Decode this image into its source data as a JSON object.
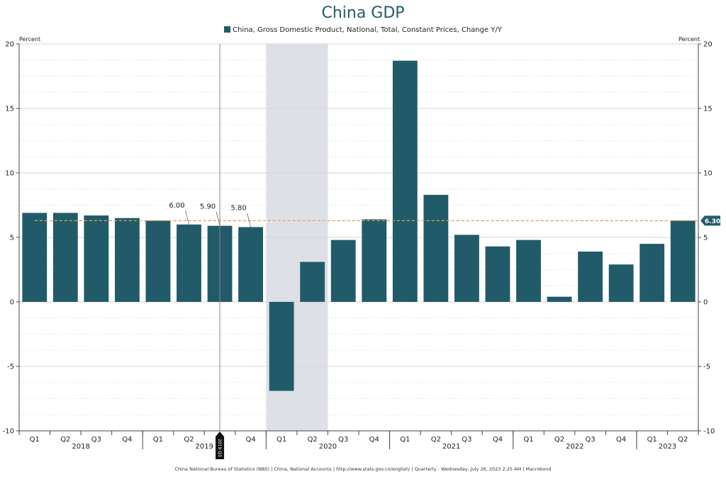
{
  "chart_data": {
    "type": "bar",
    "title": "China GDP",
    "series": [
      {
        "name": "China, Gross Domestic Product, National, Total, Constant Prices, Change Y/Y",
        "color": "#215B69",
        "values": [
          6.9,
          6.9,
          6.7,
          6.5,
          6.3,
          6.0,
          5.9,
          5.8,
          -6.9,
          3.1,
          4.8,
          6.4,
          18.7,
          8.3,
          5.2,
          4.3,
          4.8,
          0.4,
          3.9,
          2.9,
          4.5,
          6.3
        ]
      }
    ],
    "categories": [
      "2018 Q1",
      "2018 Q2",
      "2018 Q3",
      "2018 Q4",
      "2019 Q1",
      "2019 Q2",
      "2019 Q3",
      "2019 Q4",
      "2020 Q1",
      "2020 Q2",
      "2020 Q3",
      "2020 Q4",
      "2021 Q1",
      "2021 Q2",
      "2021 Q3",
      "2021 Q4",
      "2022 Q1",
      "2022 Q2",
      "2022 Q3",
      "2022 Q4",
      "2023 Q1",
      "2023 Q2"
    ],
    "quarter_labels": [
      "Q1",
      "Q2",
      "Q3",
      "Q4",
      "Q1",
      "Q2",
      "",
      "Q4",
      "Q1",
      "Q2",
      "Q3",
      "Q4",
      "Q1",
      "Q2",
      "Q3",
      "Q4",
      "Q1",
      "Q2",
      "Q3",
      "Q4",
      "Q1",
      "Q2"
    ],
    "years": [
      {
        "label": "2018",
        "start": 0,
        "end": 3
      },
      {
        "label": "2019",
        "start": 4,
        "end": 7
      },
      {
        "label": "2020",
        "start": 8,
        "end": 11
      },
      {
        "label": "2021",
        "start": 12,
        "end": 15
      },
      {
        "label": "2022",
        "start": 16,
        "end": 19
      },
      {
        "label": "2023",
        "start": 20,
        "end": 21
      }
    ],
    "ylabel_left": "Percent",
    "ylabel_right": "Percent",
    "ylim": [
      -10,
      20
    ],
    "yticks": [
      -10,
      -5,
      0,
      5,
      10,
      15,
      20
    ],
    "grid": true,
    "legend_position": "top-center",
    "shaded_period": {
      "start": "2020 Q1",
      "end": "2020 Q2",
      "color": "#DDE0E7"
    },
    "reference_line": {
      "value": 6.3,
      "label": "6.30",
      "color": "#E8A040"
    },
    "annotations": [
      {
        "category": "2019 Q2",
        "value": 6.0,
        "text": "6.00"
      },
      {
        "category": "2019 Q3",
        "value": 5.9,
        "text": "5.90"
      },
      {
        "category": "2019 Q4",
        "value": 5.8,
        "text": "5.80"
      }
    ],
    "cursor": {
      "category": "2019 Q3",
      "text": "2019 Q3"
    }
  },
  "footer": "China National Bureau of Statistics (NBS)   |   China, National Accounts   |   http://www.stats.gov.cn/english/   |   Quarterly - Wednesday, July 26, 2023 2:25 AM   |   Macrobond"
}
